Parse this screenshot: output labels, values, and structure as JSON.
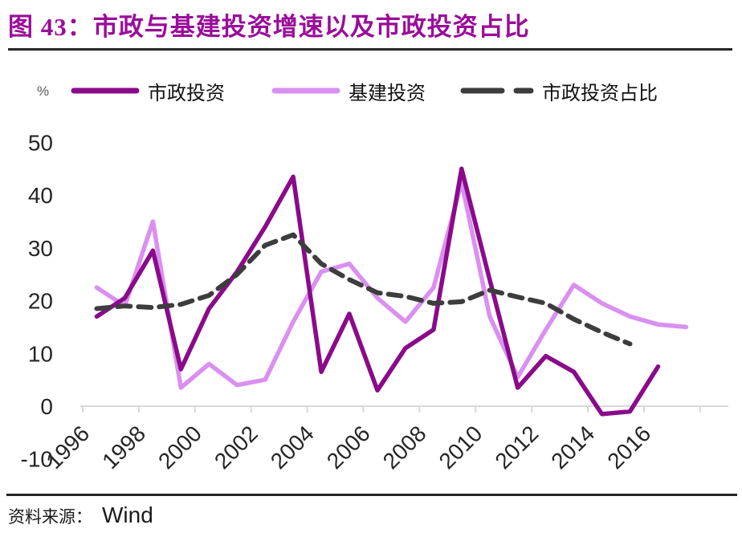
{
  "figure": {
    "title": "图 43：市政与基建投资增速以及市政投资占比",
    "title_color": "#9A0D9A",
    "source_label": "资料来源：",
    "source_value": "Wind"
  },
  "axis": {
    "unit": "%"
  },
  "chart_data": {
    "type": "line",
    "title": "图 43：市政与基建投资增速以及市政投资占比",
    "xlabel": "",
    "ylabel": "%",
    "ylim": [
      -10,
      50
    ],
    "grid": false,
    "legend_position": "top",
    "axis_color": "#D9D9D9",
    "y_ticks": [
      50,
      40,
      30,
      20,
      10,
      0,
      -10
    ],
    "x_tick_labels": [
      1996,
      1998,
      2000,
      2002,
      2004,
      2006,
      2008,
      2010,
      2012,
      2014,
      2016
    ],
    "series": [
      {
        "name": "市政投资",
        "color": "#8A0B8A",
        "line_style": "solid",
        "x": [
          1996,
          1997,
          1998,
          1999,
          2000,
          2001,
          2002,
          2003,
          2004,
          2005,
          2006,
          2007,
          2008,
          2009,
          2010,
          2011,
          2012,
          2013,
          2014,
          2015,
          2016
        ],
        "values": [
          17,
          20.5,
          29.5,
          7,
          18.5,
          25.5,
          34,
          43.5,
          6.5,
          17.5,
          3,
          11,
          14.5,
          45,
          24,
          3.5,
          9.5,
          6.5,
          -1.5,
          -1,
          7.5
        ]
      },
      {
        "name": "基建投资",
        "color": "#DA90F0",
        "line_style": "solid",
        "x": [
          1996,
          1997,
          1998,
          1999,
          2000,
          2001,
          2002,
          2003,
          2004,
          2005,
          2006,
          2007,
          2008,
          2009,
          2010,
          2011,
          2012,
          2013,
          2014,
          2015,
          2016,
          2017
        ],
        "values": [
          22.5,
          19,
          35,
          3.5,
          8,
          4,
          5,
          16,
          25.5,
          27,
          20.5,
          16,
          22.5,
          42.5,
          17,
          5.5,
          14.5,
          23,
          19.5,
          17,
          15.5,
          15
        ]
      },
      {
        "name": "市政投资占比",
        "color": "#3D3D3D",
        "line_style": "dashed",
        "x": [
          1996,
          1997,
          1998,
          1999,
          2000,
          2001,
          2002,
          2003,
          2004,
          2005,
          2006,
          2007,
          2008,
          2009,
          2010,
          2011,
          2012,
          2013,
          2014,
          2015
        ],
        "values": [
          18.5,
          19,
          18.7,
          19.3,
          21,
          25,
          30.5,
          32.5,
          27,
          24,
          21.5,
          20.8,
          19.5,
          19.8,
          22,
          20.7,
          19.5,
          16.5,
          14,
          11.8
        ]
      }
    ]
  }
}
